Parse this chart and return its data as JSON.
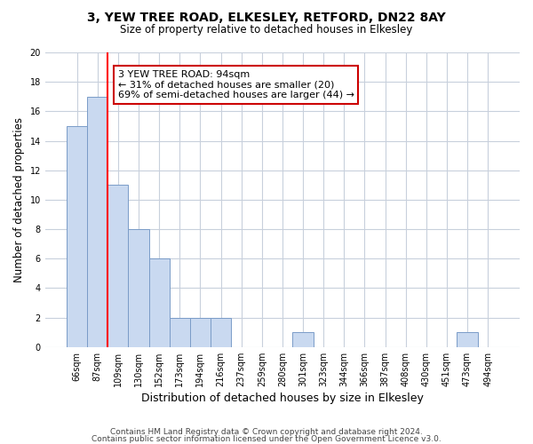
{
  "title1": "3, YEW TREE ROAD, ELKESLEY, RETFORD, DN22 8AY",
  "title2": "Size of property relative to detached houses in Elkesley",
  "xlabel": "Distribution of detached houses by size in Elkesley",
  "ylabel": "Number of detached properties",
  "categories": [
    "66sqm",
    "87sqm",
    "109sqm",
    "130sqm",
    "152sqm",
    "173sqm",
    "194sqm",
    "216sqm",
    "237sqm",
    "259sqm",
    "280sqm",
    "301sqm",
    "323sqm",
    "344sqm",
    "366sqm",
    "387sqm",
    "408sqm",
    "430sqm",
    "451sqm",
    "473sqm",
    "494sqm"
  ],
  "values": [
    15,
    17,
    11,
    8,
    6,
    2,
    2,
    2,
    0,
    0,
    0,
    1,
    0,
    0,
    0,
    0,
    0,
    0,
    0,
    1,
    0
  ],
  "bar_color": "#c9d9f0",
  "bar_edge_color": "#7a9cc8",
  "red_line_x": 1.5,
  "annotation_text": "3 YEW TREE ROAD: 94sqm\n← 31% of detached houses are smaller (20)\n69% of semi-detached houses are larger (44) →",
  "annotation_box_color": "#ffffff",
  "annotation_box_edge_color": "#cc0000",
  "ylim": [
    0,
    20
  ],
  "yticks": [
    0,
    2,
    4,
    6,
    8,
    10,
    12,
    14,
    16,
    18,
    20
  ],
  "footer1": "Contains HM Land Registry data © Crown copyright and database right 2024.",
  "footer2": "Contains public sector information licensed under the Open Government Licence v3.0.",
  "bg_color": "#ffffff",
  "grid_color": "#c8d0dc"
}
